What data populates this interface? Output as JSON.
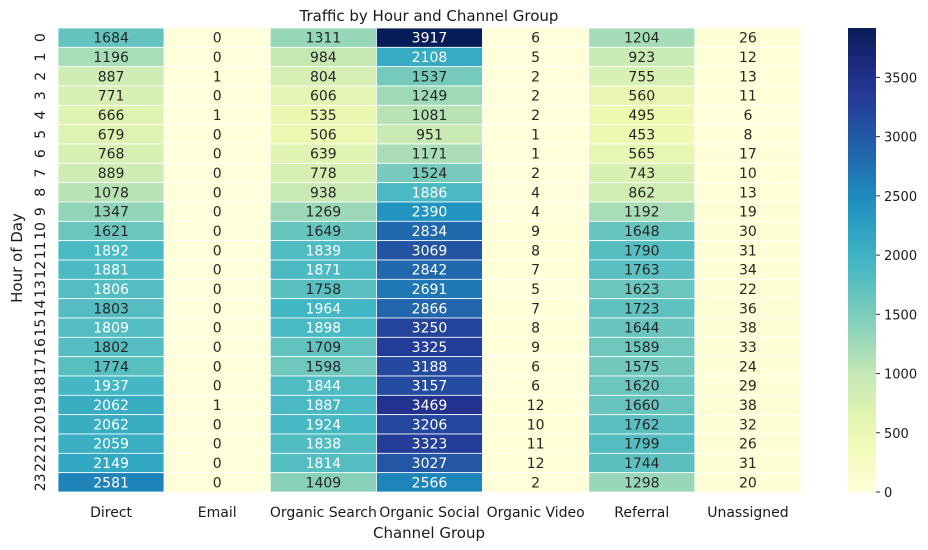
{
  "chart_data": {
    "type": "heatmap",
    "title": "Traffic by Hour and Channel Group",
    "xlabel": "Channel Group",
    "ylabel": "Hour of Day",
    "columns": [
      "Direct",
      "Email",
      "Organic Search",
      "Organic Social",
      "Organic Video",
      "Referral",
      "Unassigned"
    ],
    "rows": [
      "0",
      "1",
      "2",
      "3",
      "4",
      "5",
      "6",
      "7",
      "8",
      "9",
      "10",
      "11",
      "12",
      "13",
      "14",
      "15",
      "16",
      "17",
      "18",
      "19",
      "20",
      "21",
      "22",
      "23"
    ],
    "values": [
      [
        1684,
        0,
        1311,
        3917,
        6,
        1204,
        26
      ],
      [
        1196,
        0,
        984,
        2108,
        5,
        923,
        12
      ],
      [
        887,
        1,
        804,
        1537,
        2,
        755,
        13
      ],
      [
        771,
        0,
        606,
        1249,
        2,
        560,
        11
      ],
      [
        666,
        1,
        535,
        1081,
        2,
        495,
        6
      ],
      [
        679,
        0,
        506,
        951,
        1,
        453,
        8
      ],
      [
        768,
        0,
        639,
        1171,
        1,
        565,
        17
      ],
      [
        889,
        0,
        778,
        1524,
        2,
        743,
        10
      ],
      [
        1078,
        0,
        938,
        1886,
        4,
        862,
        13
      ],
      [
        1347,
        0,
        1269,
        2390,
        4,
        1192,
        19
      ],
      [
        1621,
        0,
        1649,
        2834,
        9,
        1648,
        30
      ],
      [
        1892,
        0,
        1839,
        3069,
        8,
        1790,
        31
      ],
      [
        1881,
        0,
        1871,
        2842,
        7,
        1763,
        34
      ],
      [
        1806,
        0,
        1758,
        2691,
        5,
        1623,
        22
      ],
      [
        1803,
        0,
        1964,
        2866,
        7,
        1723,
        36
      ],
      [
        1809,
        0,
        1898,
        3250,
        8,
        1644,
        38
      ],
      [
        1802,
        0,
        1709,
        3325,
        9,
        1589,
        33
      ],
      [
        1774,
        0,
        1598,
        3188,
        6,
        1575,
        24
      ],
      [
        1937,
        0,
        1844,
        3157,
        6,
        1620,
        29
      ],
      [
        2062,
        1,
        1887,
        3469,
        12,
        1660,
        38
      ],
      [
        2062,
        0,
        1924,
        3206,
        10,
        1762,
        32
      ],
      [
        2059,
        0,
        1838,
        3323,
        11,
        1799,
        26
      ],
      [
        2149,
        0,
        1814,
        3027,
        12,
        1744,
        31
      ],
      [
        2581,
        0,
        1409,
        2566,
        2,
        1298,
        20
      ]
    ],
    "colormap": "YlGnBu",
    "vmin": 0,
    "vmax": 3917,
    "colorbar_ticks": [
      0,
      500,
      1000,
      1500,
      2000,
      2500,
      3000,
      3500
    ],
    "annotated": true
  }
}
